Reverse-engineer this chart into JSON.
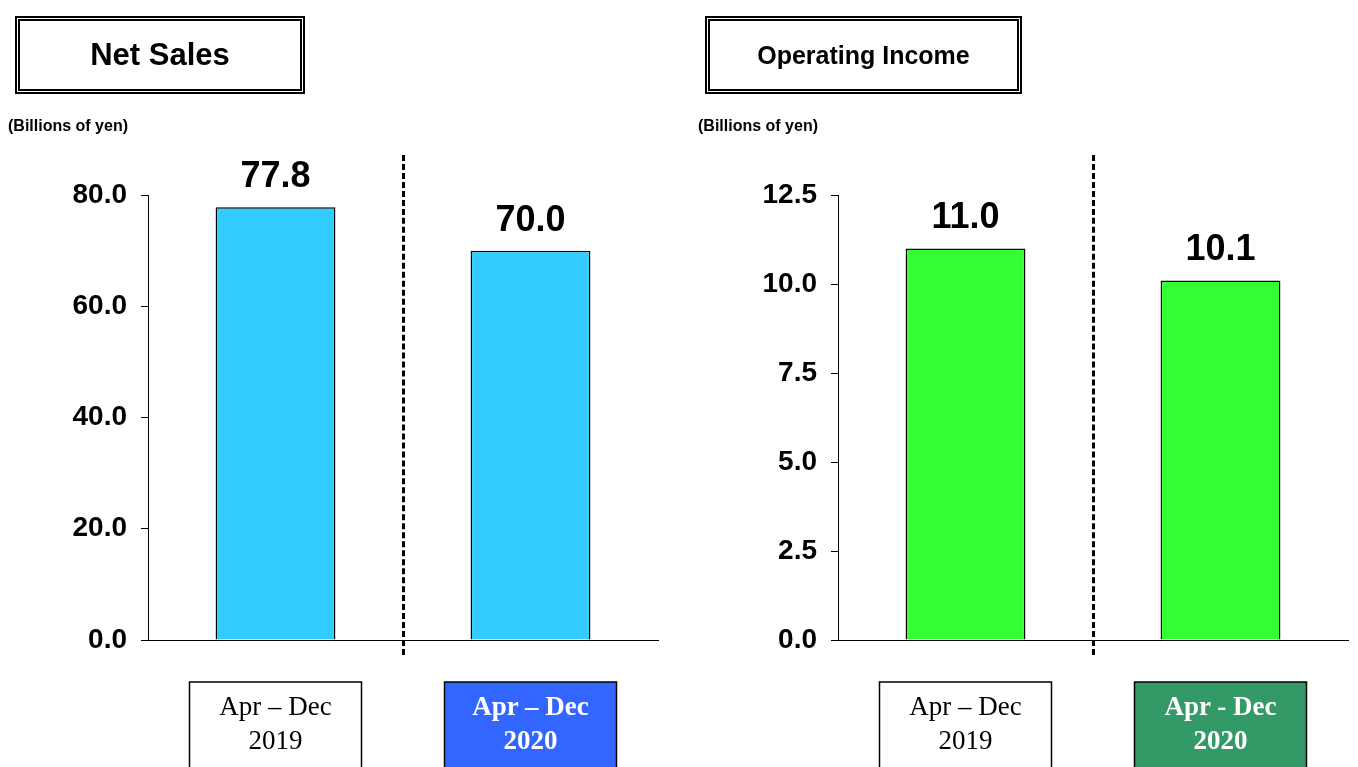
{
  "chart_data": [
    {
      "type": "bar",
      "title": "Net Sales",
      "ylabel": "(Billions of yen)",
      "categories": [
        "Apr – Dec 2019",
        "Apr – Dec 2020"
      ],
      "values": [
        77.8,
        70.0
      ],
      "value_labels": [
        "77.8",
        "70.0"
      ],
      "color": "#33ccff",
      "ylim": [
        0,
        80
      ],
      "yticks": [
        {
          "value": 0,
          "label": "0.0"
        },
        {
          "value": 20,
          "label": "20.0"
        },
        {
          "value": 40,
          "label": "40.0"
        },
        {
          "value": 60,
          "label": "60.0"
        },
        {
          "value": 80,
          "label": "80.0"
        }
      ],
      "grid": false,
      "legend": false
    },
    {
      "type": "bar",
      "title": "Operating Income",
      "ylabel": "(Billions of yen)",
      "categories": [
        "Apr – Dec 2019",
        "Apr - Dec 2020"
      ],
      "values": [
        11.0,
        10.1
      ],
      "value_labels": [
        "11.0",
        "10.1"
      ],
      "color": "#33ff33",
      "ylim": [
        0,
        12.5
      ],
      "yticks": [
        {
          "value": 0,
          "label": "0.0"
        },
        {
          "value": 2.5,
          "label": "2.5"
        },
        {
          "value": 5,
          "label": "5.0"
        },
        {
          "value": 7.5,
          "label": "7.5"
        },
        {
          "value": 10,
          "label": "10.0"
        },
        {
          "value": 12.5,
          "label": "12.5"
        }
      ],
      "grid": false,
      "legend": false
    }
  ]
}
